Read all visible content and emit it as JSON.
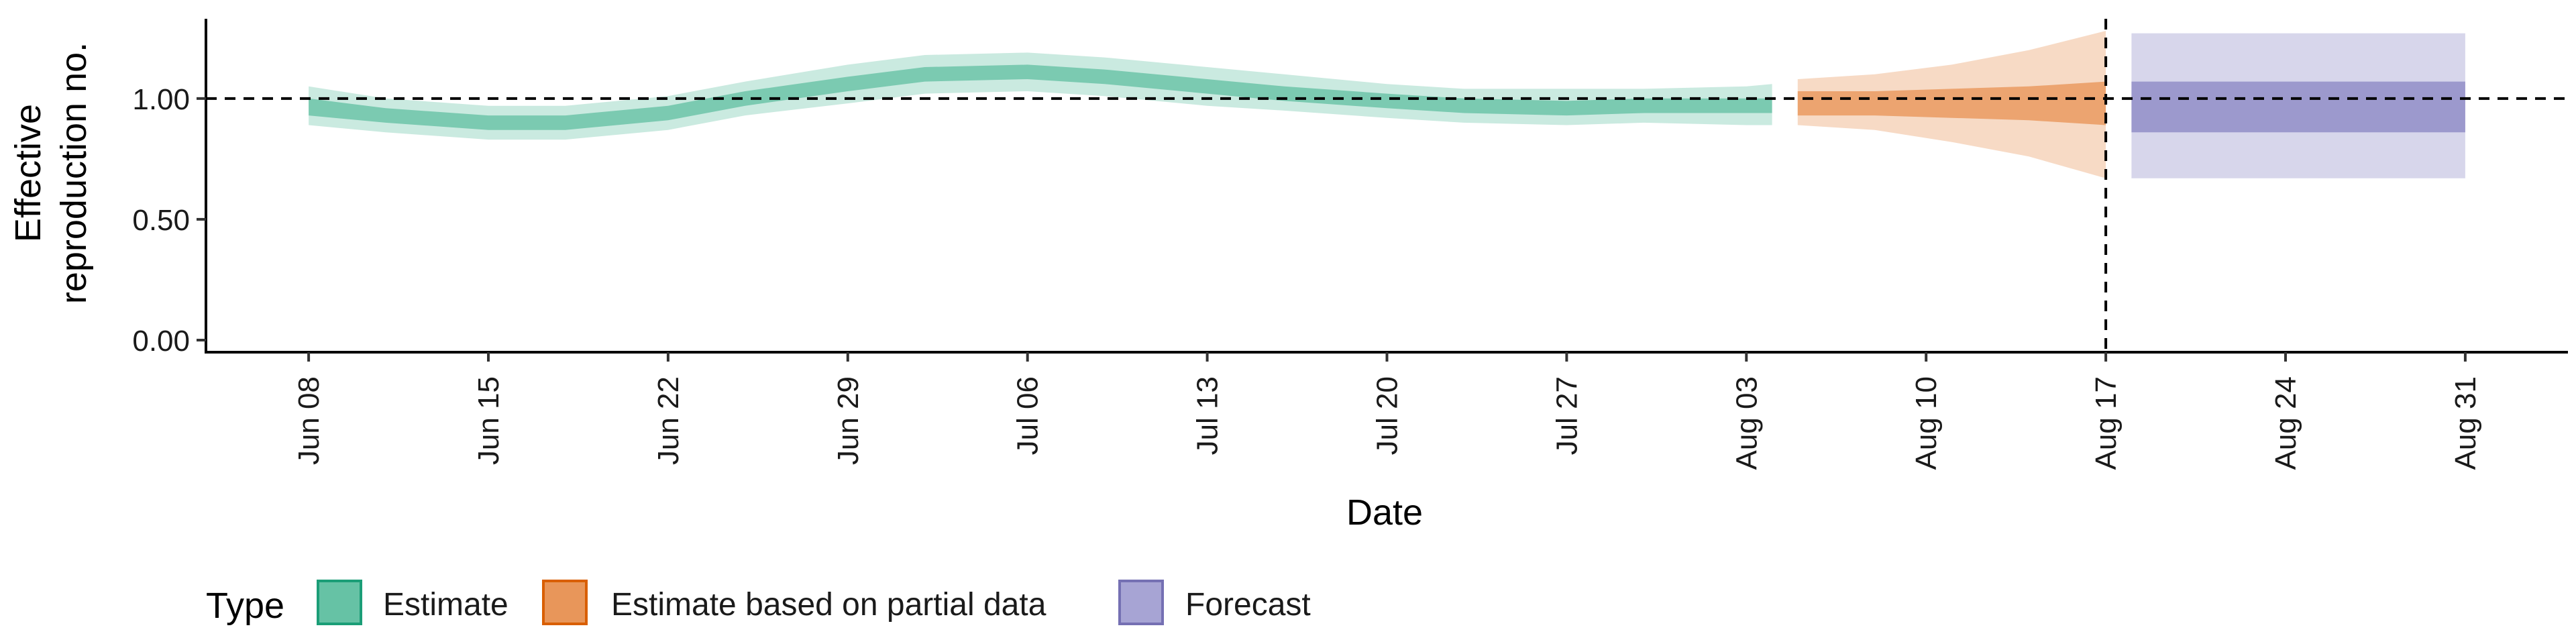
{
  "chart_data": {
    "type": "area",
    "xlabel": "Date",
    "ylabel_lines": [
      "Effective",
      "reproduction no."
    ],
    "x_ticks": [
      "Jun 08",
      "Jun 15",
      "Jun 22",
      "Jun 29",
      "Jul 06",
      "Jul 13",
      "Jul 20",
      "Jul 27",
      "Aug 03",
      "Aug 10",
      "Aug 17",
      "Aug 24",
      "Aug 31"
    ],
    "x_range": [
      "2020-06-04",
      "2020-09-04"
    ],
    "y_ticks": [
      "0.00",
      "0.50",
      "1.00"
    ],
    "ylim": [
      -0.05,
      1.33
    ],
    "reference_line_y": 1.0,
    "forecast_start_line": "2020-08-17",
    "series": [
      {
        "name": "Estimate",
        "color": "#66c2a5",
        "points": [
          {
            "date": "2020-06-08",
            "median": 0.97,
            "lower50": 0.93,
            "upper50": 1.0,
            "lower90": 0.89,
            "upper90": 1.05
          },
          {
            "date": "2020-06-11",
            "median": 0.93,
            "lower50": 0.9,
            "upper50": 0.96,
            "lower90": 0.86,
            "upper90": 1.0
          },
          {
            "date": "2020-06-15",
            "median": 0.9,
            "lower50": 0.87,
            "upper50": 0.93,
            "lower90": 0.83,
            "upper90": 0.97
          },
          {
            "date": "2020-06-18",
            "median": 0.9,
            "lower50": 0.87,
            "upper50": 0.93,
            "lower90": 0.83,
            "upper90": 0.97
          },
          {
            "date": "2020-06-22",
            "median": 0.94,
            "lower50": 0.91,
            "upper50": 0.97,
            "lower90": 0.87,
            "upper90": 1.01
          },
          {
            "date": "2020-06-25",
            "median": 1.0,
            "lower50": 0.97,
            "upper50": 1.03,
            "lower90": 0.93,
            "upper90": 1.07
          },
          {
            "date": "2020-06-29",
            "median": 1.06,
            "lower50": 1.03,
            "upper50": 1.09,
            "lower90": 0.98,
            "upper90": 1.14
          },
          {
            "date": "2020-07-02",
            "median": 1.1,
            "lower50": 1.07,
            "upper50": 1.13,
            "lower90": 1.02,
            "upper90": 1.18
          },
          {
            "date": "2020-07-06",
            "median": 1.11,
            "lower50": 1.08,
            "upper50": 1.14,
            "lower90": 1.03,
            "upper90": 1.19
          },
          {
            "date": "2020-07-09",
            "median": 1.09,
            "lower50": 1.06,
            "upper50": 1.12,
            "lower90": 1.01,
            "upper90": 1.17
          },
          {
            "date": "2020-07-13",
            "median": 1.05,
            "lower50": 1.02,
            "upper50": 1.08,
            "lower90": 0.97,
            "upper90": 1.13
          },
          {
            "date": "2020-07-16",
            "median": 1.02,
            "lower50": 0.99,
            "upper50": 1.05,
            "lower90": 0.95,
            "upper90": 1.1
          },
          {
            "date": "2020-07-20",
            "median": 0.99,
            "lower50": 0.96,
            "upper50": 1.02,
            "lower90": 0.92,
            "upper90": 1.06
          },
          {
            "date": "2020-07-23",
            "median": 0.97,
            "lower50": 0.94,
            "upper50": 1.0,
            "lower90": 0.9,
            "upper90": 1.04
          },
          {
            "date": "2020-07-27",
            "median": 0.96,
            "lower50": 0.93,
            "upper50": 0.99,
            "lower90": 0.89,
            "upper90": 1.04
          },
          {
            "date": "2020-07-30",
            "median": 0.97,
            "lower50": 0.94,
            "upper50": 1.0,
            "lower90": 0.9,
            "upper90": 1.04
          },
          {
            "date": "2020-08-03",
            "median": 0.97,
            "lower50": 0.94,
            "upper50": 1.0,
            "lower90": 0.89,
            "upper90": 1.05
          },
          {
            "date": "2020-08-04",
            "median": 0.97,
            "lower50": 0.94,
            "upper50": 1.0,
            "lower90": 0.89,
            "upper90": 1.06
          }
        ]
      },
      {
        "name": "Estimate based on partial data",
        "color": "#e8965a",
        "points": [
          {
            "date": "2020-08-05",
            "median": 0.97,
            "lower50": 0.93,
            "upper50": 1.03,
            "lower90": 0.89,
            "upper90": 1.08
          },
          {
            "date": "2020-08-08",
            "median": 0.98,
            "lower50": 0.93,
            "upper50": 1.03,
            "lower90": 0.87,
            "upper90": 1.1
          },
          {
            "date": "2020-08-11",
            "median": 0.98,
            "lower50": 0.92,
            "upper50": 1.04,
            "lower90": 0.82,
            "upper90": 1.14
          },
          {
            "date": "2020-08-14",
            "median": 0.98,
            "lower50": 0.91,
            "upper50": 1.05,
            "lower90": 0.76,
            "upper90": 1.2
          },
          {
            "date": "2020-08-17",
            "median": 0.98,
            "lower50": 0.89,
            "upper50": 1.07,
            "lower90": 0.67,
            "upper90": 1.28
          }
        ]
      },
      {
        "name": "Forecast",
        "color": "#8d89c6",
        "points": [
          {
            "date": "2020-08-18",
            "median": 0.96,
            "lower50": 0.86,
            "upper50": 1.07,
            "lower90": 0.67,
            "upper90": 1.27
          },
          {
            "date": "2020-08-31",
            "median": 0.96,
            "lower50": 0.86,
            "upper50": 1.07,
            "lower90": 0.67,
            "upper90": 1.27
          }
        ]
      }
    ],
    "legend": {
      "title": "Type",
      "position": "bottom-left",
      "items": [
        {
          "label": "Estimate",
          "fill": "#66c2a5",
          "border": "#1b9e77"
        },
        {
          "label": "Estimate based on partial data",
          "fill": "#e8965a",
          "border": "#d95f02"
        },
        {
          "label": "Forecast",
          "fill": "#a7a4d4",
          "border": "#7570b3"
        }
      ]
    }
  }
}
